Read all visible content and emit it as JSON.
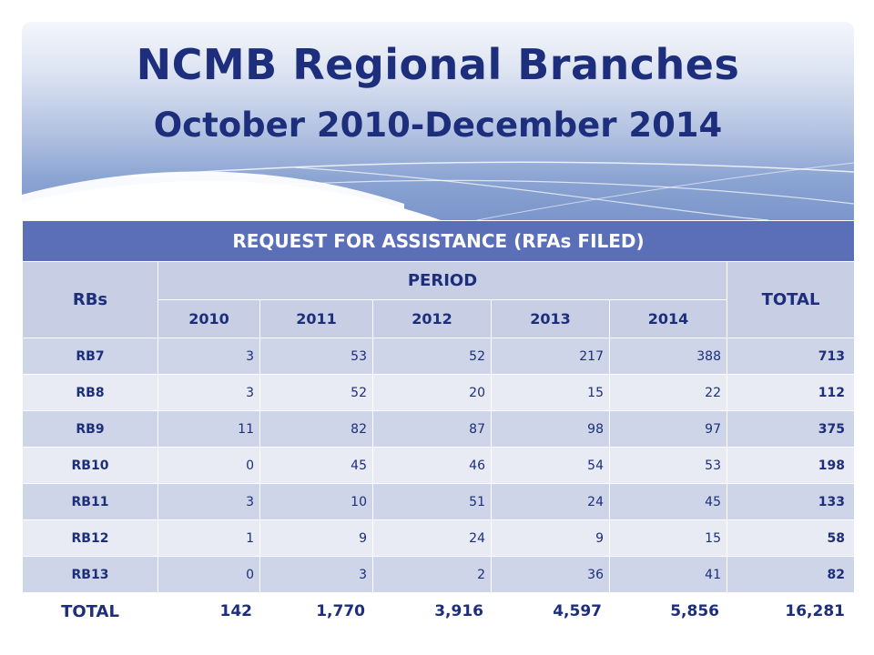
{
  "slide": {
    "title": "NCMB Regional Branches",
    "subtitle": "October 2010-December 2014"
  },
  "table": {
    "caption": "REQUEST FOR ASSISTANCE (RFAs FILED)",
    "rb_header": "RBs",
    "period_header": "PERIOD",
    "total_header": "TOTAL",
    "years": [
      "2010",
      "2011",
      "2012",
      "2013",
      "2014"
    ],
    "rows": [
      {
        "rb": "RB7",
        "values": [
          "3",
          "53",
          "52",
          "217",
          "388"
        ],
        "total": "713"
      },
      {
        "rb": "RB8",
        "values": [
          "3",
          "52",
          "20",
          "15",
          "22"
        ],
        "total": "112"
      },
      {
        "rb": "RB9",
        "values": [
          "11",
          "82",
          "87",
          "98",
          "97"
        ],
        "total": "375"
      },
      {
        "rb": "RB10",
        "values": [
          "0",
          "45",
          "46",
          "54",
          "53"
        ],
        "total": "198"
      },
      {
        "rb": "RB11",
        "values": [
          "3",
          "10",
          "51",
          "24",
          "45"
        ],
        "total": "133"
      },
      {
        "rb": "RB12",
        "values": [
          "1",
          "9",
          "24",
          "9",
          "15"
        ],
        "total": "58"
      },
      {
        "rb": "RB13",
        "values": [
          "0",
          "3",
          "2",
          "36",
          "41"
        ],
        "total": "82"
      }
    ],
    "footer": {
      "label": "TOTAL",
      "values": [
        "142",
        "1,770",
        "3,916",
        "4,597",
        "5,856"
      ],
      "total": "16,281"
    }
  }
}
